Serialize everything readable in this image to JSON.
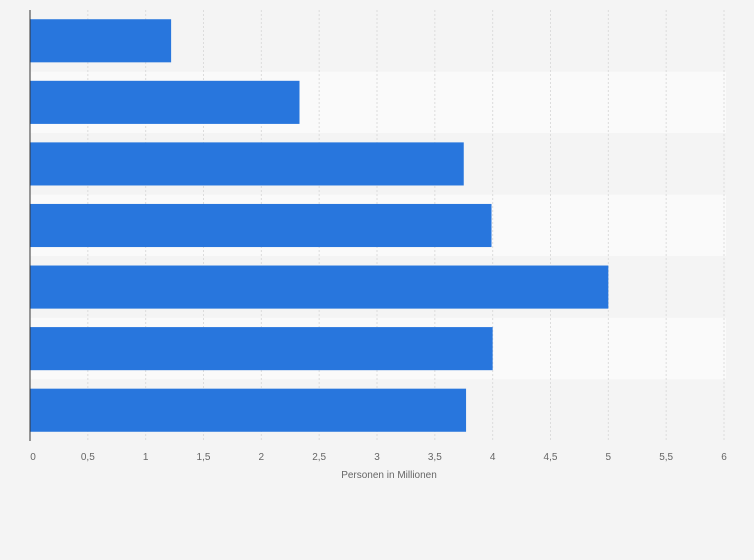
{
  "chart_data": {
    "type": "bar",
    "orientation": "horizontal",
    "categories": [
      "",
      "",
      "",
      "",
      "",
      "",
      ""
    ],
    "values": [
      1.22,
      2.33,
      3.75,
      3.99,
      5.0,
      4.0,
      3.77
    ],
    "xlim": [
      0,
      6
    ],
    "xticks": [
      0,
      0.5,
      1,
      1.5,
      2,
      2.5,
      3,
      3.5,
      4,
      4.5,
      5,
      5.5,
      6
    ],
    "xtick_labels": [
      "0",
      "0,5",
      "1",
      "1,5",
      "2",
      "2,5",
      "3",
      "3,5",
      "4",
      "4,5",
      "5",
      "5,5",
      "6"
    ],
    "xlabel": "Personen in Millionen",
    "ylabel": "",
    "title": "",
    "grid": true,
    "legend": "none",
    "colors": {
      "bar": "#2876dd",
      "grid": "#dcdcdc",
      "axis": "#333333",
      "band_light": "#fafafa",
      "band_dark": "#f4f4f4",
      "text": "#666666"
    }
  }
}
